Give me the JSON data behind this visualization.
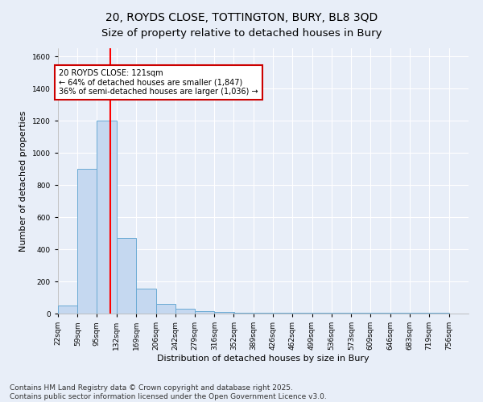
{
  "title1": "20, ROYDS CLOSE, TOTTINGTON, BURY, BL8 3QD",
  "title2": "Size of property relative to detached houses in Bury",
  "xlabel": "Distribution of detached houses by size in Bury",
  "ylabel": "Number of detached properties",
  "bin_labels": [
    "22sqm",
    "59sqm",
    "95sqm",
    "132sqm",
    "169sqm",
    "206sqm",
    "242sqm",
    "279sqm",
    "316sqm",
    "352sqm",
    "389sqm",
    "426sqm",
    "462sqm",
    "499sqm",
    "536sqm",
    "573sqm",
    "609sqm",
    "646sqm",
    "683sqm",
    "719sqm",
    "756sqm"
  ],
  "bin_edges": [
    22,
    59,
    95,
    132,
    169,
    206,
    242,
    279,
    316,
    352,
    389,
    426,
    462,
    499,
    536,
    573,
    609,
    646,
    683,
    719,
    756
  ],
  "bar_heights": [
    50,
    900,
    1200,
    470,
    155,
    60,
    30,
    15,
    8,
    5,
    5,
    3,
    3,
    3,
    3,
    3,
    3,
    3,
    3,
    3
  ],
  "bar_color": "#c5d8f0",
  "bar_edge_color": "#6aaad4",
  "red_line_x": 121,
  "ylim": [
    0,
    1650
  ],
  "yticks": [
    0,
    200,
    400,
    600,
    800,
    1000,
    1200,
    1400,
    1600
  ],
  "annotation_text": "20 ROYDS CLOSE: 121sqm\n← 64% of detached houses are smaller (1,847)\n36% of semi-detached houses are larger (1,036) →",
  "annotation_box_color": "#ffffff",
  "annotation_box_edge_color": "#cc0000",
  "footer_text": "Contains HM Land Registry data © Crown copyright and database right 2025.\nContains public sector information licensed under the Open Government Licence v3.0.",
  "background_color": "#e8eef8",
  "grid_color": "#ffffff",
  "title_fontsize": 10,
  "label_fontsize": 8,
  "tick_fontsize": 6.5,
  "footer_fontsize": 6.5
}
